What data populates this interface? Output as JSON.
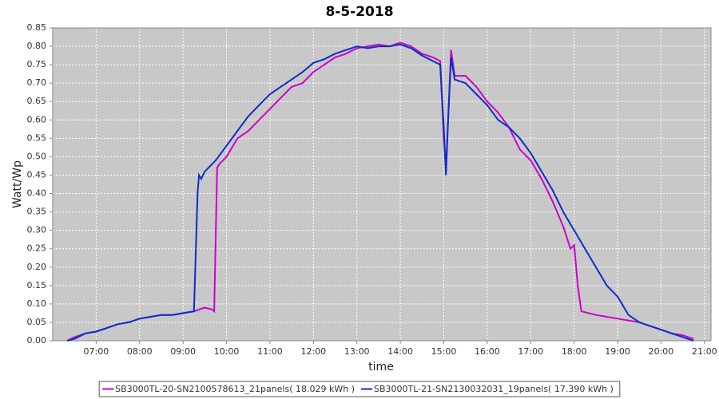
{
  "chart_data": {
    "type": "line",
    "title": "8-5-2018",
    "x_label": "time",
    "y_label": "Watt/Wp",
    "xlim": [
      "06:00",
      "21:09"
    ],
    "xticks": [
      "07:00",
      "08:00",
      "09:00",
      "10:00",
      "11:00",
      "12:00",
      "13:00",
      "14:00",
      "15:00",
      "16:00",
      "17:00",
      "18:00",
      "19:00",
      "20:00",
      "21:00"
    ],
    "ylim": [
      0,
      0.85
    ],
    "yticks": [
      {
        "value": 0,
        "label": "0.00"
      },
      {
        "value": 0.05,
        "label": "0.05"
      },
      {
        "value": 0.1,
        "label": "0.10"
      },
      {
        "value": 0.15,
        "label": "0.15"
      },
      {
        "value": 0.2,
        "label": "0.20"
      },
      {
        "value": 0.25,
        "label": "0.25"
      },
      {
        "value": 0.3,
        "label": "0.30"
      },
      {
        "value": 0.35,
        "label": "0.35"
      },
      {
        "value": 0.4,
        "label": "0.40"
      },
      {
        "value": 0.45,
        "label": "0.45"
      },
      {
        "value": 0.5,
        "label": "0.50"
      },
      {
        "value": 0.55,
        "label": "0.55"
      },
      {
        "value": 0.6,
        "label": "0.60"
      },
      {
        "value": 0.65,
        "label": "0.65"
      },
      {
        "value": 0.7,
        "label": "0.70"
      },
      {
        "value": 0.75,
        "label": "0.75"
      },
      {
        "value": 0.8,
        "label": "0.80"
      },
      {
        "value": 0.85,
        "label": "0.85"
      }
    ],
    "grid": true,
    "series": [
      {
        "name": "SB3000TL-20-SN2100578613_21panels( 18.029 kWh )",
        "color": "#cc00cc",
        "x": [
          "06:20",
          "06:30",
          "06:45",
          "07:00",
          "07:15",
          "07:30",
          "07:45",
          "08:00",
          "08:15",
          "08:30",
          "08:45",
          "09:00",
          "09:15",
          "09:30",
          "09:40",
          "09:43",
          "09:47",
          "09:50",
          "10:00",
          "10:15",
          "10:30",
          "10:45",
          "11:00",
          "11:15",
          "11:30",
          "11:45",
          "12:00",
          "12:15",
          "12:30",
          "12:45",
          "13:00",
          "13:15",
          "13:30",
          "13:45",
          "14:00",
          "14:15",
          "14:30",
          "14:45",
          "14:55",
          "15:00",
          "15:03",
          "15:06",
          "15:10",
          "15:15",
          "15:30",
          "15:45",
          "16:00",
          "16:15",
          "16:30",
          "16:45",
          "17:00",
          "17:15",
          "17:30",
          "17:45",
          "17:55",
          "18:00",
          "18:05",
          "18:10",
          "18:30",
          "18:45",
          "19:00",
          "19:15",
          "19:30",
          "19:45",
          "20:00",
          "20:15",
          "20:30",
          "20:45"
        ],
        "values": [
          0.0,
          0.01,
          0.02,
          0.025,
          0.035,
          0.045,
          0.05,
          0.06,
          0.065,
          0.07,
          0.07,
          0.075,
          0.08,
          0.09,
          0.085,
          0.08,
          0.47,
          0.48,
          0.5,
          0.55,
          0.57,
          0.6,
          0.63,
          0.66,
          0.69,
          0.7,
          0.73,
          0.75,
          0.77,
          0.78,
          0.795,
          0.8,
          0.805,
          0.8,
          0.81,
          0.8,
          0.78,
          0.77,
          0.76,
          0.55,
          0.47,
          0.6,
          0.79,
          0.72,
          0.72,
          0.69,
          0.65,
          0.62,
          0.58,
          0.52,
          0.49,
          0.44,
          0.38,
          0.31,
          0.25,
          0.26,
          0.15,
          0.08,
          0.07,
          0.065,
          0.06,
          0.055,
          0.05,
          0.04,
          0.03,
          0.02,
          0.015,
          0.005
        ]
      },
      {
        "name": "SB3000TL-21-SN2130032031_19panels( 17.390 kWh )",
        "color": "#0a2fc8",
        "x": [
          "06:20",
          "06:30",
          "06:45",
          "07:00",
          "07:15",
          "07:30",
          "07:45",
          "08:00",
          "08:15",
          "08:30",
          "08:45",
          "09:00",
          "09:15",
          "09:20",
          "09:22",
          "09:25",
          "09:30",
          "09:45",
          "10:00",
          "10:15",
          "10:30",
          "10:45",
          "11:00",
          "11:15",
          "11:30",
          "11:45",
          "12:00",
          "12:15",
          "12:30",
          "12:45",
          "13:00",
          "13:15",
          "13:30",
          "13:45",
          "14:00",
          "14:15",
          "14:30",
          "14:45",
          "14:55",
          "15:00",
          "15:03",
          "15:06",
          "15:10",
          "15:15",
          "15:30",
          "15:45",
          "16:00",
          "16:15",
          "16:30",
          "16:45",
          "17:00",
          "17:15",
          "17:30",
          "17:45",
          "18:00",
          "18:15",
          "18:30",
          "18:45",
          "19:00",
          "19:15",
          "19:30",
          "19:45",
          "20:00",
          "20:15",
          "20:30",
          "20:45"
        ],
        "values": [
          0.0,
          0.005,
          0.02,
          0.025,
          0.035,
          0.045,
          0.05,
          0.06,
          0.065,
          0.07,
          0.07,
          0.075,
          0.08,
          0.4,
          0.45,
          0.44,
          0.46,
          0.49,
          0.53,
          0.57,
          0.61,
          0.64,
          0.67,
          0.69,
          0.71,
          0.73,
          0.755,
          0.765,
          0.78,
          0.79,
          0.8,
          0.795,
          0.8,
          0.8,
          0.805,
          0.795,
          0.775,
          0.76,
          0.75,
          0.58,
          0.45,
          0.6,
          0.77,
          0.71,
          0.7,
          0.67,
          0.64,
          0.6,
          0.58,
          0.55,
          0.51,
          0.46,
          0.41,
          0.35,
          0.3,
          0.25,
          0.2,
          0.15,
          0.12,
          0.07,
          0.05,
          0.04,
          0.03,
          0.02,
          0.01,
          0.0
        ]
      }
    ]
  }
}
